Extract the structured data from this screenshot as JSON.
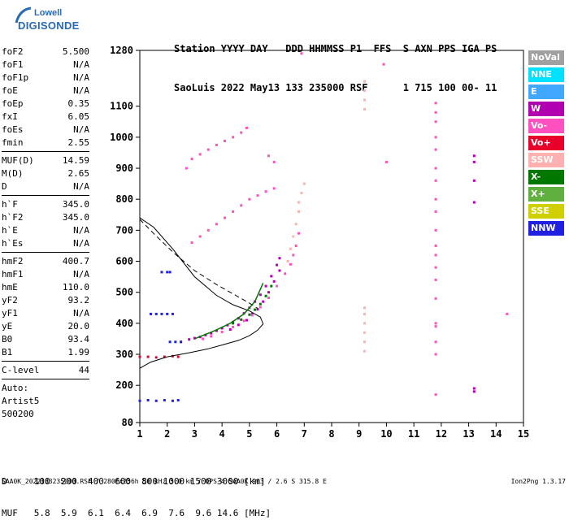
{
  "logo": {
    "line1": "Lowell",
    "line2": "DIGISONDE"
  },
  "header": {
    "line1": "Station YYYY DAY   DDD HHMMSS P1  FFS  S AXN PPS IGA PS",
    "line2": "SaoLuis 2022 May13 133 235000 RSF      1 715 100 00- 11"
  },
  "params": [
    {
      "label": "foF2",
      "value": "5.500"
    },
    {
      "label": "foF1",
      "value": "N/A"
    },
    {
      "label": "foF1p",
      "value": "N/A"
    },
    {
      "label": "foE",
      "value": "N/A"
    },
    {
      "label": "foEp",
      "value": "0.35"
    },
    {
      "label": "fxI",
      "value": "6.05"
    },
    {
      "label": "foEs",
      "value": "N/A"
    },
    {
      "label": "fmin",
      "value": "2.55"
    },
    {
      "sep": true
    },
    {
      "label": "MUF(D)",
      "value": "14.59"
    },
    {
      "label": "M(D)",
      "value": "2.65"
    },
    {
      "label": "D",
      "value": "N/A"
    },
    {
      "sep": true
    },
    {
      "label": "h`F",
      "value": "345.0"
    },
    {
      "label": "h`F2",
      "value": "345.0"
    },
    {
      "label": "h`E",
      "value": "N/A"
    },
    {
      "label": "h`Es",
      "value": "N/A"
    },
    {
      "sep": true
    },
    {
      "label": "hmF2",
      "value": "400.7"
    },
    {
      "label": "hmF1",
      "value": "N/A"
    },
    {
      "label": "hmE",
      "value": "110.0"
    },
    {
      "label": "yF2",
      "value": "93.2"
    },
    {
      "label": "yF1",
      "value": "N/A"
    },
    {
      "label": "yE",
      "value": "20.0"
    },
    {
      "label": "B0",
      "value": "93.4"
    },
    {
      "label": "B1",
      "value": "1.99"
    },
    {
      "sep": true
    },
    {
      "label": "C-level",
      "value": "44"
    },
    {
      "sep": true
    },
    {
      "text": "Auto:"
    },
    {
      "text": "Artist5"
    },
    {
      "text": "500200"
    }
  ],
  "legend": [
    {
      "label": "NoVal",
      "color": "#a0a0a0"
    },
    {
      "label": "NNE",
      "color": "#00e0ff"
    },
    {
      "label": "E",
      "color": "#40a8ff"
    },
    {
      "label": "W",
      "color": "#b000b0"
    },
    {
      "label": "Vo-",
      "color": "#ff50c0"
    },
    {
      "label": "Vo+",
      "color": "#e8002a"
    },
    {
      "label": "SSW",
      "color": "#ffb0b0"
    },
    {
      "label": "X-",
      "color": "#007800"
    },
    {
      "label": "X+",
      "color": "#60b040"
    },
    {
      "label": "SSE",
      "color": "#d0d000"
    },
    {
      "label": "NNW",
      "color": "#2020e0"
    }
  ],
  "bottom": {
    "dline": "D     100  200  400  600  800 1000 1500 3000 [km]",
    "mufline": "MUF   5.8  5.9  6.1  6.4  6.9  7.6  9.6 14.6 [MHz]"
  },
  "footer": "SAA0K_2022133235000.RSF / 280fx256h 50 kHz 5.0 km / DPS-4 SAA0K 903 / 2.6 S 315.8 E",
  "version": "Ion2Png 1.3.17",
  "chart_data": {
    "type": "scatter",
    "title": "",
    "xlabel": "",
    "ylabel": "",
    "xlim": [
      1,
      15
    ],
    "ylim": [
      80,
      1280
    ],
    "xticks": [
      1,
      2,
      3,
      4,
      5,
      6,
      7,
      8,
      9,
      10,
      11,
      12,
      13,
      14,
      15
    ],
    "yticks": [
      80,
      200,
      300,
      400,
      500,
      600,
      700,
      800,
      900,
      1000,
      1100,
      1280
    ],
    "profile_solid": [
      [
        1.0,
        255
      ],
      [
        1.4,
        275
      ],
      [
        2.0,
        292
      ],
      [
        2.8,
        305
      ],
      [
        3.5,
        318
      ],
      [
        4.0,
        330
      ],
      [
        4.6,
        345
      ],
      [
        5.0,
        360
      ],
      [
        5.3,
        378
      ],
      [
        5.5,
        398
      ],
      [
        5.4,
        420
      ],
      [
        5.0,
        440
      ],
      [
        4.4,
        460
      ],
      [
        3.8,
        490
      ],
      [
        3.0,
        550
      ],
      [
        2.2,
        640
      ],
      [
        1.5,
        710
      ],
      [
        1.0,
        740
      ]
    ],
    "profile_dashed": [
      [
        1.0,
        735
      ],
      [
        1.5,
        690
      ],
      [
        2.2,
        630
      ],
      [
        3.0,
        570
      ],
      [
        3.8,
        525
      ],
      [
        4.5,
        490
      ],
      [
        5.0,
        465
      ],
      [
        5.3,
        448
      ]
    ],
    "trace_fit": [
      [
        3.0,
        350
      ],
      [
        3.7,
        375
      ],
      [
        4.3,
        400
      ],
      [
        4.8,
        430
      ],
      [
        5.2,
        470
      ],
      [
        5.5,
        530
      ]
    ],
    "clusters": [
      {
        "name": "F-trace",
        "color": "#b000b0",
        "pts": [
          [
            2.5,
            340
          ],
          [
            2.8,
            348
          ],
          [
            3.0,
            352
          ],
          [
            3.2,
            356
          ],
          [
            3.4,
            362
          ],
          [
            3.6,
            368
          ],
          [
            3.8,
            376
          ],
          [
            4.0,
            384
          ],
          [
            4.2,
            394
          ],
          [
            4.4,
            404
          ],
          [
            4.6,
            416
          ],
          [
            4.8,
            432
          ],
          [
            5.0,
            450
          ],
          [
            5.2,
            470
          ],
          [
            5.4,
            492
          ],
          [
            5.6,
            520
          ],
          [
            5.8,
            552
          ],
          [
            6.0,
            588
          ],
          [
            6.1,
            610
          ],
          [
            4.3,
            380
          ],
          [
            4.6,
            395
          ],
          [
            4.9,
            410
          ],
          [
            5.1,
            430
          ],
          [
            5.3,
            445
          ],
          [
            5.5,
            470
          ],
          [
            5.7,
            500
          ],
          [
            5.9,
            535
          ],
          [
            6.1,
            570
          ]
        ]
      },
      {
        "name": "F-trace-pink",
        "color": "#ff50c0",
        "pts": [
          [
            3.3,
            350
          ],
          [
            3.6,
            358
          ],
          [
            4.0,
            372
          ],
          [
            4.4,
            388
          ],
          [
            4.8,
            408
          ],
          [
            5.1,
            426
          ],
          [
            5.4,
            452
          ],
          [
            5.7,
            482
          ],
          [
            6.0,
            520
          ],
          [
            6.3,
            560
          ],
          [
            6.5,
            590
          ],
          [
            6.6,
            620
          ],
          [
            6.7,
            650
          ],
          [
            6.8,
            690
          ]
        ]
      },
      {
        "name": "X-trace",
        "color": "#007800",
        "pts": [
          [
            4.4,
            400
          ],
          [
            4.7,
            412
          ],
          [
            5.0,
            428
          ],
          [
            5.2,
            444
          ],
          [
            5.4,
            462
          ],
          [
            5.6,
            488
          ],
          [
            5.8,
            520
          ]
        ]
      },
      {
        "name": "SSW-echo",
        "color": "#ffb0b0",
        "pts": [
          [
            6.4,
            600
          ],
          [
            6.5,
            640
          ],
          [
            6.6,
            680
          ],
          [
            6.7,
            720
          ],
          [
            6.8,
            760
          ],
          [
            6.8,
            790
          ],
          [
            6.9,
            820
          ],
          [
            7.0,
            850
          ]
        ]
      },
      {
        "name": "2F-trace",
        "color": "#ff50c0",
        "pts": [
          [
            2.9,
            660
          ],
          [
            3.2,
            680
          ],
          [
            3.5,
            700
          ],
          [
            3.8,
            720
          ],
          [
            4.1,
            740
          ],
          [
            4.4,
            760
          ],
          [
            4.7,
            780
          ],
          [
            5.0,
            800
          ],
          [
            5.3,
            812
          ],
          [
            5.6,
            825
          ],
          [
            5.9,
            835
          ]
        ]
      },
      {
        "name": "3F-trace",
        "color": "#ff50c0",
        "pts": [
          [
            2.9,
            930
          ],
          [
            3.2,
            945
          ],
          [
            3.5,
            960
          ],
          [
            3.8,
            975
          ],
          [
            4.1,
            988
          ],
          [
            4.4,
            1000
          ],
          [
            4.7,
            1015
          ],
          [
            4.9,
            1030
          ]
        ]
      },
      {
        "name": "Es-low",
        "color": "#2020e0",
        "pts": [
          [
            1.0,
            150
          ],
          [
            1.3,
            152
          ],
          [
            1.6,
            150
          ],
          [
            1.9,
            152
          ],
          [
            2.2,
            150
          ],
          [
            2.4,
            152
          ]
        ]
      },
      {
        "name": "Es-290",
        "color": "#e8002a",
        "pts": [
          [
            1.0,
            292
          ],
          [
            1.3,
            292
          ],
          [
            1.6,
            290
          ],
          [
            1.9,
            292
          ],
          [
            2.2,
            294
          ],
          [
            2.4,
            292
          ]
        ]
      },
      {
        "name": "E-430",
        "color": "#2020e0",
        "pts": [
          [
            1.4,
            430
          ],
          [
            1.6,
            430
          ],
          [
            1.8,
            430
          ],
          [
            2.0,
            430
          ],
          [
            2.2,
            430
          ]
        ]
      },
      {
        "name": "E-565",
        "color": "#2020e0",
        "pts": [
          [
            1.8,
            565
          ],
          [
            2.0,
            565
          ],
          [
            2.1,
            565
          ]
        ]
      },
      {
        "name": "E-340",
        "color": "#2020e0",
        "pts": [
          [
            2.1,
            340
          ],
          [
            2.3,
            340
          ],
          [
            2.5,
            340
          ]
        ]
      },
      {
        "name": "interference-12",
        "color": "#ff50c0",
        "pts": [
          [
            11.8,
            170
          ],
          [
            11.8,
            300
          ],
          [
            11.8,
            340
          ],
          [
            11.8,
            390
          ],
          [
            11.8,
            400
          ],
          [
            11.8,
            480
          ],
          [
            11.8,
            540
          ],
          [
            11.8,
            580
          ],
          [
            11.8,
            620
          ],
          [
            11.8,
            650
          ],
          [
            11.8,
            700
          ],
          [
            11.8,
            760
          ],
          [
            11.8,
            800
          ],
          [
            11.8,
            860
          ],
          [
            11.8,
            900
          ],
          [
            11.8,
            960
          ],
          [
            11.8,
            1000
          ],
          [
            11.8,
            1050
          ],
          [
            11.8,
            1080
          ],
          [
            11.8,
            1110
          ]
        ]
      },
      {
        "name": "interference-9",
        "color": "#ffb0b0",
        "pts": [
          [
            9.2,
            310
          ],
          [
            9.2,
            340
          ],
          [
            9.2,
            370
          ],
          [
            9.2,
            400
          ],
          [
            9.2,
            430
          ],
          [
            9.2,
            450
          ],
          [
            9.2,
            1090
          ],
          [
            9.2,
            1120
          ],
          [
            9.2,
            1150
          ],
          [
            9.2,
            1180
          ]
        ]
      },
      {
        "name": "interference-13",
        "color": "#b000b0",
        "pts": [
          [
            13.2,
            180
          ],
          [
            13.2,
            190
          ],
          [
            13.2,
            790
          ],
          [
            13.2,
            860
          ],
          [
            13.2,
            920
          ],
          [
            13.2,
            940
          ]
        ]
      },
      {
        "name": "misc",
        "color": "#ff50c0",
        "pts": [
          [
            6.9,
            1270
          ],
          [
            9.9,
            1235
          ],
          [
            10.0,
            920
          ],
          [
            14.4,
            430
          ],
          [
            2.7,
            900
          ],
          [
            5.7,
            940
          ],
          [
            5.9,
            920
          ]
        ]
      }
    ]
  }
}
